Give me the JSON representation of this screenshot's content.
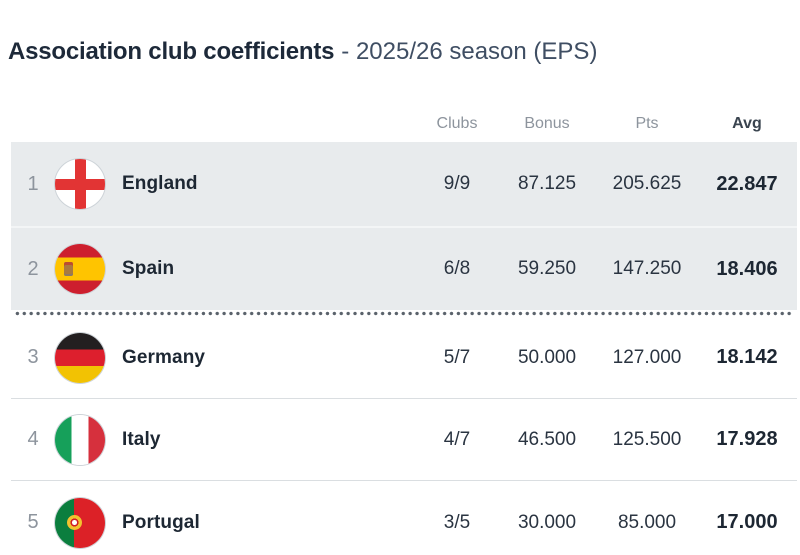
{
  "title": {
    "main": "Association club coefficients",
    "suffix": "- 2025/26 season (EPS)"
  },
  "table": {
    "columns": [
      {
        "key": "clubs",
        "label": "Clubs"
      },
      {
        "key": "bonus",
        "label": "Bonus"
      },
      {
        "key": "pts",
        "label": "Pts"
      },
      {
        "key": "avg",
        "label": "Avg"
      }
    ],
    "divider_after_rank": 2,
    "rows": [
      {
        "rank": "1",
        "country": "England",
        "flag": "england",
        "clubs": "9/9",
        "bonus": "87.125",
        "pts": "205.625",
        "avg": "22.847",
        "highlighted": true
      },
      {
        "rank": "2",
        "country": "Spain",
        "flag": "spain",
        "clubs": "6/8",
        "bonus": "59.250",
        "pts": "147.250",
        "avg": "18.406",
        "highlighted": true
      },
      {
        "rank": "3",
        "country": "Germany",
        "flag": "germany",
        "clubs": "5/7",
        "bonus": "50.000",
        "pts": "127.000",
        "avg": "18.142",
        "highlighted": false
      },
      {
        "rank": "4",
        "country": "Italy",
        "flag": "italy",
        "clubs": "4/7",
        "bonus": "46.500",
        "pts": "125.500",
        "avg": "17.928",
        "highlighted": false
      },
      {
        "rank": "5",
        "country": "Portugal",
        "flag": "portugal",
        "clubs": "3/5",
        "bonus": "30.000",
        "pts": "85.000",
        "avg": "17.000",
        "highlighted": false
      }
    ]
  },
  "colors": {
    "title_main": "#1d2939",
    "title_suffix": "#3f4e63",
    "muted": "#8d949d",
    "header_avg": "#3a444f",
    "text_dark": "#1d2733",
    "text_values": "#2a3441",
    "highlight_bg": "#e8ebed",
    "highlight_sep": "#f3f5f6",
    "row_border": "#dadee1",
    "dot_color": "#5a626b",
    "flag_ring": "#cdd3d8",
    "en_red": "#e23434",
    "es_red": "#cd1f2e",
    "es_yellow": "#ffc400",
    "es_emblem": "#a97a3f",
    "de_black": "#231f20",
    "de_red": "#dd1f2d",
    "de_gold": "#f2c203",
    "it_green": "#16a05a",
    "it_red": "#d6303d",
    "pt_green": "#0b7e3e",
    "pt_red": "#dc2127",
    "pt_gold": "#f2c22f",
    "pt_shield": "#d21f26"
  }
}
